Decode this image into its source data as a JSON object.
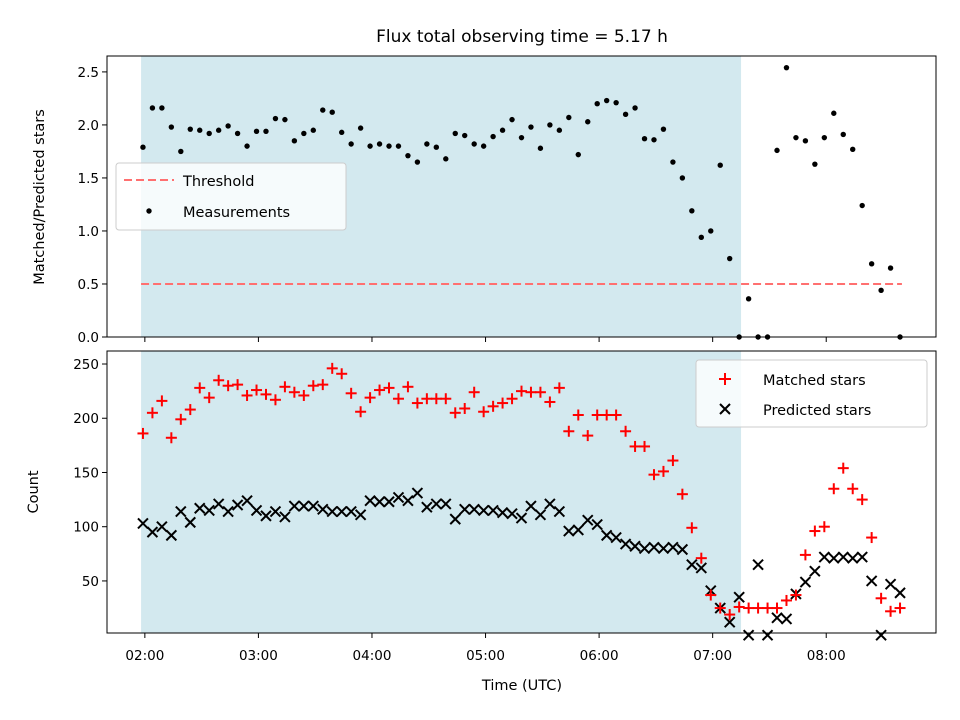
{
  "chart_data": [
    {
      "type": "scatter",
      "title": "Flux total observing time = 5.17 h",
      "xlabel": "",
      "ylabel": "Matched/Predicted stars",
      "xlim": [
        "01:40",
        "08:58"
      ],
      "ylim": [
        0,
        2.65
      ],
      "yticks": [
        "0.0",
        "0.5",
        "1.0",
        "1.5",
        "2.0",
        "2.5"
      ],
      "threshold": {
        "name": "Threshold",
        "value": 0.5,
        "color": "#ff7070",
        "x_range": [
          "01:58",
          "08:40"
        ]
      },
      "observing_span": {
        "start": "01:58",
        "end": "07:15",
        "color": "#d3e9ef"
      },
      "legend": {
        "position": "center-left",
        "entries": [
          "Threshold",
          "Measurements"
        ]
      },
      "series": [
        {
          "name": "Measurements",
          "color": "#000000",
          "x": [
            "01:59",
            "02:04",
            "02:09",
            "02:14",
            "02:19",
            "02:24",
            "02:29",
            "02:34",
            "02:39",
            "02:44",
            "02:49",
            "02:54",
            "02:59",
            "03:04",
            "03:09",
            "03:14",
            "03:19",
            "03:24",
            "03:29",
            "03:34",
            "03:39",
            "03:44",
            "03:49",
            "03:54",
            "03:59",
            "04:04",
            "04:09",
            "04:14",
            "04:19",
            "04:24",
            "04:29",
            "04:34",
            "04:39",
            "04:44",
            "04:49",
            "04:54",
            "04:59",
            "05:04",
            "05:09",
            "05:14",
            "05:19",
            "05:24",
            "05:29",
            "05:34",
            "05:39",
            "05:44",
            "05:49",
            "05:54",
            "05:59",
            "06:04",
            "06:09",
            "06:14",
            "06:19",
            "06:24",
            "06:29",
            "06:34",
            "06:39",
            "06:44",
            "06:49",
            "06:54",
            "06:59",
            "07:04",
            "07:09",
            "07:14",
            "07:19",
            "07:24",
            "07:29",
            "07:34",
            "07:39",
            "07:44",
            "07:49",
            "07:54",
            "07:59",
            "08:04",
            "08:09",
            "08:14",
            "08:19",
            "08:24",
            "08:29",
            "08:34",
            "08:39"
          ],
          "y": [
            1.79,
            2.16,
            2.16,
            1.98,
            1.75,
            1.96,
            1.95,
            1.92,
            1.95,
            1.99,
            1.92,
            1.8,
            1.94,
            1.94,
            2.06,
            2.05,
            1.85,
            1.92,
            1.95,
            2.14,
            2.12,
            1.93,
            1.82,
            1.97,
            1.8,
            1.82,
            1.8,
            1.8,
            1.71,
            1.65,
            1.82,
            1.79,
            1.68,
            1.92,
            1.9,
            1.82,
            1.8,
            1.89,
            1.95,
            2.05,
            1.88,
            1.98,
            1.78,
            2.0,
            1.95,
            2.07,
            1.72,
            2.03,
            2.2,
            2.23,
            2.21,
            2.1,
            2.16,
            1.87,
            1.86,
            1.96,
            1.65,
            1.5,
            1.19,
            0.94,
            1.0,
            1.62,
            0.74,
            0.0,
            0.36,
            0.0,
            0.0,
            1.76,
            2.54,
            1.88,
            1.85,
            1.63,
            1.88,
            2.11,
            1.91,
            1.77,
            1.24,
            0.69,
            0.44,
            0.65,
            0.0
          ]
        }
      ]
    },
    {
      "type": "scatter",
      "title": "",
      "xlabel": "Time (UTC)",
      "ylabel": "Count",
      "xlim": [
        "01:40",
        "08:58"
      ],
      "ylim": [
        2,
        262
      ],
      "yticks": [
        "50",
        "100",
        "150",
        "200",
        "250"
      ],
      "xticks": [
        "02:00",
        "03:00",
        "04:00",
        "05:00",
        "06:00",
        "07:00",
        "08:00"
      ],
      "observing_span": {
        "start": "01:58",
        "end": "07:15",
        "color": "#d3e9ef"
      },
      "legend": {
        "position": "top-right",
        "entries": [
          "Matched stars",
          "Predicted stars"
        ]
      },
      "x": [
        "01:59",
        "02:04",
        "02:09",
        "02:14",
        "02:19",
        "02:24",
        "02:29",
        "02:34",
        "02:39",
        "02:44",
        "02:49",
        "02:54",
        "02:59",
        "03:04",
        "03:09",
        "03:14",
        "03:19",
        "03:24",
        "03:29",
        "03:34",
        "03:39",
        "03:44",
        "03:49",
        "03:54",
        "03:59",
        "04:04",
        "04:09",
        "04:14",
        "04:19",
        "04:24",
        "04:29",
        "04:34",
        "04:39",
        "04:44",
        "04:49",
        "04:54",
        "04:59",
        "05:04",
        "05:09",
        "05:14",
        "05:19",
        "05:24",
        "05:29",
        "05:34",
        "05:39",
        "05:44",
        "05:49",
        "05:54",
        "05:59",
        "06:04",
        "06:09",
        "06:14",
        "06:19",
        "06:24",
        "06:29",
        "06:34",
        "06:39",
        "06:44",
        "06:49",
        "06:54",
        "06:59",
        "07:04",
        "07:09",
        "07:14",
        "07:19",
        "07:24",
        "07:29",
        "07:34",
        "07:39",
        "07:44",
        "07:49",
        "07:54",
        "07:59",
        "08:04",
        "08:09",
        "08:14",
        "08:19",
        "08:24",
        "08:29",
        "08:34",
        "08:39"
      ],
      "series": [
        {
          "name": "Matched stars",
          "marker": "plus",
          "color": "#ff0000",
          "values": [
            186,
            205,
            216,
            182,
            199,
            208,
            228,
            219,
            235,
            230,
            231,
            221,
            226,
            222,
            217,
            229,
            224,
            221,
            230,
            231,
            246,
            241,
            223,
            206,
            219,
            226,
            228,
            218,
            229,
            214,
            218,
            218,
            218,
            205,
            209,
            224,
            206,
            211,
            214,
            218,
            225,
            224,
            224,
            215,
            228,
            188,
            203,
            184,
            203,
            203,
            203,
            188,
            174,
            174,
            148,
            151,
            161,
            130,
            99,
            71,
            37,
            25,
            19,
            26,
            25,
            25,
            25,
            25,
            32,
            37,
            74,
            96,
            100,
            135,
            154,
            135,
            125,
            90,
            34,
            22,
            25
          ]
        },
        {
          "name": "Predicted stars",
          "marker": "x",
          "color": "#000000",
          "values": [
            103,
            95,
            100,
            92,
            114,
            104,
            117,
            115,
            121,
            114,
            120,
            124,
            115,
            110,
            114,
            109,
            119,
            119,
            119,
            116,
            114,
            114,
            114,
            111,
            124,
            123,
            123,
            127,
            124,
            131,
            118,
            121,
            121,
            107,
            116,
            116,
            115,
            115,
            113,
            112,
            108,
            119,
            111,
            121,
            114,
            96,
            97,
            106,
            102,
            92,
            90,
            84,
            82,
            80,
            81,
            80,
            81,
            79,
            65,
            62,
            41,
            25,
            12,
            35,
            0,
            65,
            0,
            16,
            15,
            38,
            49,
            59,
            72,
            71,
            72,
            71,
            72,
            50,
            0,
            47,
            39
          ]
        }
      ]
    }
  ]
}
